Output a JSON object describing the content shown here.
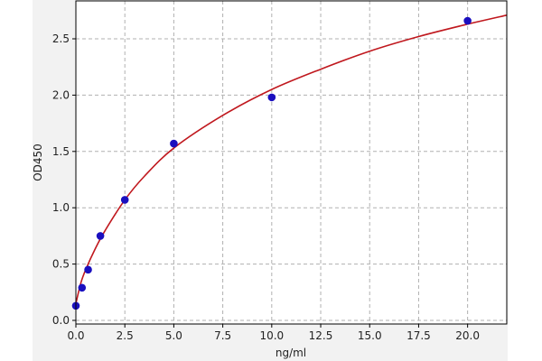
{
  "chart_data": {
    "type": "scatter",
    "title": "",
    "xlabel": "ng/ml",
    "ylabel": "OD450",
    "xlim": [
      0,
      22
    ],
    "ylim": [
      0,
      2.84
    ],
    "xticks": [
      "0.0",
      "2.5",
      "5.0",
      "7.5",
      "10.0",
      "12.5",
      "15.0",
      "17.5",
      "20.0"
    ],
    "yticks": [
      "0.0",
      "0.5",
      "1.0",
      "1.5",
      "2.0",
      "2.5"
    ],
    "grid": true,
    "points": {
      "x": [
        0,
        0.3125,
        0.625,
        1.25,
        2.5,
        5,
        10,
        20
      ],
      "y": [
        0.13,
        0.29,
        0.45,
        0.75,
        1.07,
        1.57,
        1.98,
        2.66
      ]
    },
    "fit_curve": {
      "x": [
        0,
        0.25,
        0.5,
        1,
        1.5,
        2.5,
        3.5,
        5,
        7.5,
        10,
        12.5,
        15,
        17.5,
        20,
        22
      ],
      "y": [
        0.15,
        0.33,
        0.45,
        0.64,
        0.8,
        1.07,
        1.28,
        1.53,
        1.82,
        2.05,
        2.23,
        2.39,
        2.52,
        2.63,
        2.71
      ]
    },
    "colors": {
      "points": "#1a0fbf",
      "curve": "#c0181e",
      "background": "#f2f2f2"
    }
  }
}
